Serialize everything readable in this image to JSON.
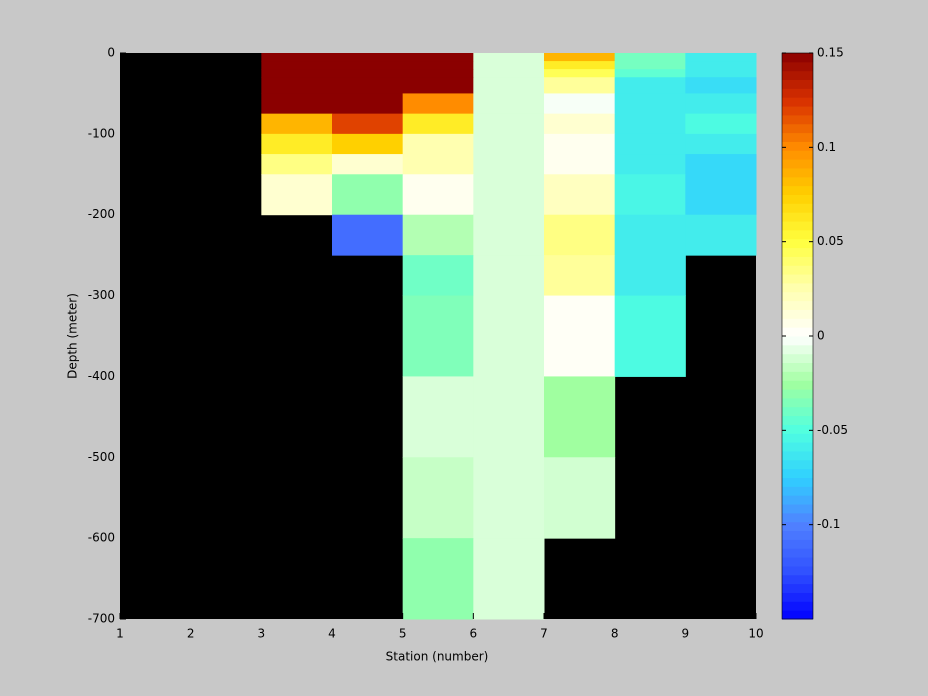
{
  "chart_data": {
    "type": "heatmap",
    "x_label": "Station (number)",
    "y_label": "Depth (meter)",
    "x": [
      1,
      2,
      3,
      4,
      5,
      6,
      7,
      8,
      9,
      10
    ],
    "y": [
      0,
      -10,
      -20,
      -30,
      -50,
      -75,
      -100,
      -125,
      -150,
      -200,
      -250,
      -300,
      -400,
      -500,
      -600,
      -700
    ],
    "values": [
      [
        null,
        null,
        0.15,
        0.15,
        0.15,
        -0.01,
        0.085,
        -0.038,
        -0.06
      ],
      [
        null,
        null,
        0.15,
        0.15,
        0.15,
        -0.01,
        0.06,
        -0.038,
        -0.06
      ],
      [
        null,
        null,
        0.15,
        0.15,
        0.15,
        -0.01,
        0.045,
        -0.045,
        -0.06
      ],
      [
        null,
        null,
        0.15,
        0.15,
        0.15,
        -0.01,
        0.03,
        -0.06,
        -0.068
      ],
      [
        null,
        null,
        0.15,
        0.15,
        0.1,
        -0.01,
        -0.002,
        -0.06,
        -0.06
      ],
      [
        null,
        null,
        0.085,
        0.12,
        0.06,
        -0.01,
        0.015,
        -0.06,
        -0.052
      ],
      [
        null,
        null,
        0.06,
        0.075,
        0.025,
        -0.01,
        0.005,
        -0.06,
        -0.06
      ],
      [
        null,
        null,
        0.035,
        0.015,
        0.025,
        -0.01,
        0.005,
        -0.06,
        -0.07
      ],
      [
        null,
        null,
        0.015,
        -0.03,
        0.005,
        -0.01,
        0.02,
        -0.055,
        -0.07
      ],
      [
        null,
        null,
        null,
        -0.11,
        -0.02,
        -0.01,
        0.035,
        -0.06,
        -0.06
      ],
      [
        null,
        null,
        null,
        null,
        -0.04,
        -0.01,
        0.03,
        -0.06,
        null
      ],
      [
        null,
        null,
        null,
        null,
        -0.035,
        -0.01,
        0.003,
        -0.052,
        null
      ],
      [
        null,
        null,
        null,
        null,
        -0.01,
        -0.01,
        -0.025,
        null,
        null
      ],
      [
        null,
        null,
        null,
        null,
        -0.015,
        -0.01,
        -0.012,
        null,
        null
      ],
      [
        null,
        null,
        null,
        null,
        -0.03,
        -0.01,
        null,
        null,
        null
      ]
    ],
    "xlim": [
      1,
      10
    ],
    "xticks": [
      1,
      2,
      3,
      4,
      5,
      6,
      7,
      8,
      9,
      10
    ],
    "ylim": [
      -700,
      0
    ],
    "yticks": [
      0,
      -100,
      -200,
      -300,
      -400,
      -500,
      -600,
      -700
    ],
    "clim": [
      -0.15,
      0.15
    ],
    "cticks": [
      0.15,
      0.1,
      0.05,
      0,
      -0.05,
      -0.1
    ],
    "colormap": [
      "#0000ff",
      "#3050ff",
      "#5080ff",
      "#30d0ff",
      "#50ffe0",
      "#a0ffa0",
      "#ffffff",
      "#ffffb0",
      "#ffff40",
      "#ffd000",
      "#ff8c00",
      "#d83000",
      "#8b0000"
    ],
    "missing_color": "#000000"
  }
}
